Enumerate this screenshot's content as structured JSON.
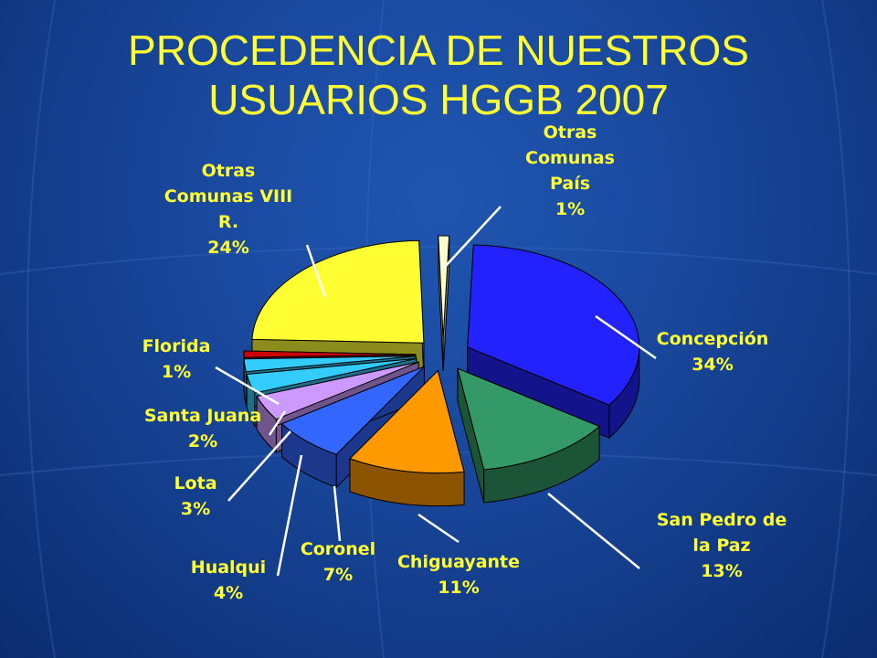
{
  "title": {
    "line1": "PROCEDENCIA DE NUESTROS",
    "line2": "USUARIOS HGGB 2007"
  },
  "colors": {
    "title": "#ffff33",
    "labels": "#ffff33",
    "leaders": "#ffffff",
    "background": "#1a4aa0"
  },
  "chart_data": {
    "type": "pie",
    "style": "3d-exploded",
    "title": "",
    "slices": [
      {
        "key": "concepcion",
        "label_lines": [
          "Concepción"
        ],
        "value_label": "34%",
        "value": 34,
        "color": "#2222ff"
      },
      {
        "key": "san_pedro",
        "label_lines": [
          "San Pedro de",
          "la Paz"
        ],
        "value_label": "13%",
        "value": 13,
        "color": "#339966"
      },
      {
        "key": "chiguayante",
        "label_lines": [
          "Chiguayante"
        ],
        "value_label": "11%",
        "value": 11,
        "color": "#ff9900"
      },
      {
        "key": "coronel",
        "label_lines": [
          "Coronel"
        ],
        "value_label": "7%",
        "value": 7,
        "color": "#3366ff"
      },
      {
        "key": "hualqui",
        "label_lines": [
          "Hualqui"
        ],
        "value_label": "4%",
        "value": 4,
        "color": "#cc99ff"
      },
      {
        "key": "lota",
        "label_lines": [
          "Lota"
        ],
        "value_label": "3%",
        "value": 3,
        "color": "#33ccff"
      },
      {
        "key": "santa_juana",
        "label_lines": [
          "Santa Juana"
        ],
        "value_label": "2%",
        "value": 2,
        "color": "#33ccff"
      },
      {
        "key": "florida",
        "label_lines": [
          "Florida"
        ],
        "value_label": "1%",
        "value": 1,
        "color": "#cc0000"
      },
      {
        "key": "otras_viii",
        "label_lines": [
          "Otras",
          "Comunas VIII",
          "R."
        ],
        "value_label": "24%",
        "value": 24,
        "color": "#ffff33"
      },
      {
        "key": "otras_pais",
        "label_lines": [
          "Otras",
          "Comunas",
          "País"
        ],
        "value_label": "1%",
        "value": 1,
        "color": "#ffffcc"
      }
    ]
  }
}
